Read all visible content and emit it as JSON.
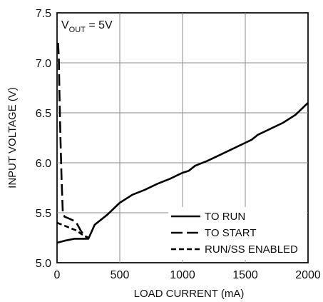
{
  "chart_data": {
    "type": "line",
    "title": "",
    "xlabel": "LOAD CURRENT (mA)",
    "ylabel": "INPUT VOLTAGE (V)",
    "xlim": [
      0,
      2000
    ],
    "ylim": [
      5.0,
      7.5
    ],
    "xticks": [
      0,
      500,
      1000,
      1500,
      2000
    ],
    "yticks": [
      5.0,
      5.5,
      6.0,
      6.5,
      7.0,
      7.5
    ],
    "xtick_labels": [
      "0",
      "500",
      "1000",
      "1500",
      "2000"
    ],
    "ytick_labels": [
      "5.0",
      "5.5",
      "6.0",
      "6.5",
      "7.0",
      "7.5"
    ],
    "grid": true,
    "legend_position": "bottom-right",
    "annotation": {
      "prefix": "V",
      "subscript": "OUT",
      "suffix": " = 5V"
    },
    "series": [
      {
        "name": "TO RUN",
        "style": "solid",
        "x": [
          0,
          60,
          140,
          210,
          250,
          300,
          400,
          500,
          600,
          700,
          800,
          900,
          1000,
          1050,
          1100,
          1200,
          1300,
          1400,
          1500,
          1550,
          1600,
          1700,
          1800,
          1900,
          2000
        ],
        "y": [
          5.2,
          5.22,
          5.24,
          5.24,
          5.24,
          5.38,
          5.48,
          5.6,
          5.68,
          5.73,
          5.79,
          5.84,
          5.9,
          5.92,
          5.97,
          6.02,
          6.08,
          6.14,
          6.2,
          6.23,
          6.28,
          6.34,
          6.4,
          6.48,
          6.6
        ]
      },
      {
        "name": "TO START",
        "style": "long-dash",
        "x": [
          8,
          14,
          18,
          26,
          36,
          46,
          60,
          100,
          150,
          190,
          210,
          240,
          255
        ],
        "y": [
          7.2,
          7.05,
          6.75,
          6.3,
          5.85,
          5.5,
          5.46,
          5.44,
          5.41,
          5.32,
          5.28,
          5.25,
          5.24
        ]
      },
      {
        "name": "RUN/SS ENABLED",
        "style": "short-dash",
        "x": [
          0,
          40,
          80,
          120,
          160,
          190,
          220,
          250
        ],
        "y": [
          5.4,
          5.38,
          5.36,
          5.34,
          5.32,
          5.29,
          5.27,
          5.25
        ]
      }
    ]
  }
}
